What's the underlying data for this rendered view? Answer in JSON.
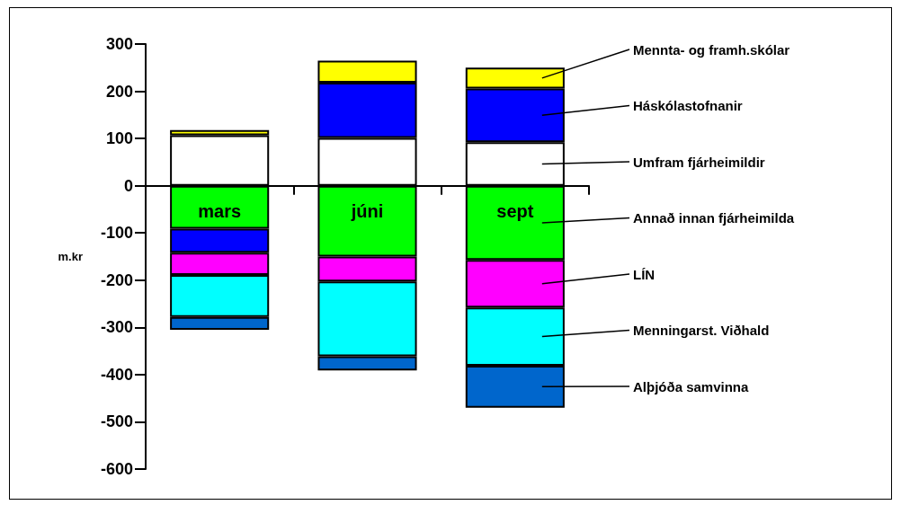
{
  "chart_data": {
    "type": "bar",
    "stacked": true,
    "ylabel": "m.kr",
    "categories": [
      "mars",
      "júni",
      "sept"
    ],
    "series": [
      {
        "name": "Umfram fjárheimildir",
        "color": "#ffffff",
        "values": [
          107,
          101,
          92
        ]
      },
      {
        "name": "Annað innan fjárheimilda",
        "color": "#00ff00",
        "values": [
          -91,
          -150,
          -157
        ]
      },
      {
        "name": "Háskólastofnanir",
        "color": "#0000ff",
        "values": [
          -51,
          117,
          114
        ]
      },
      {
        "name": "LÍN",
        "color": "#ff00ff",
        "values": [
          -47,
          -53,
          -101
        ]
      },
      {
        "name": "Menningarst. Viðhald",
        "color": "#00ffff",
        "values": [
          -89,
          -158,
          -123
        ]
      },
      {
        "name": "Alþjóða samvinna",
        "color": "#0066cc",
        "values": [
          -27,
          -30,
          -89
        ]
      },
      {
        "name": "Mennta- og framh.skólar",
        "color": "#ffff00",
        "values": [
          11,
          47,
          44
        ]
      }
    ],
    "ylim": [
      -600,
      300
    ],
    "yticks": [
      -600,
      -500,
      -400,
      -300,
      -200,
      -100,
      0,
      100,
      200,
      300
    ],
    "legend": false
  }
}
